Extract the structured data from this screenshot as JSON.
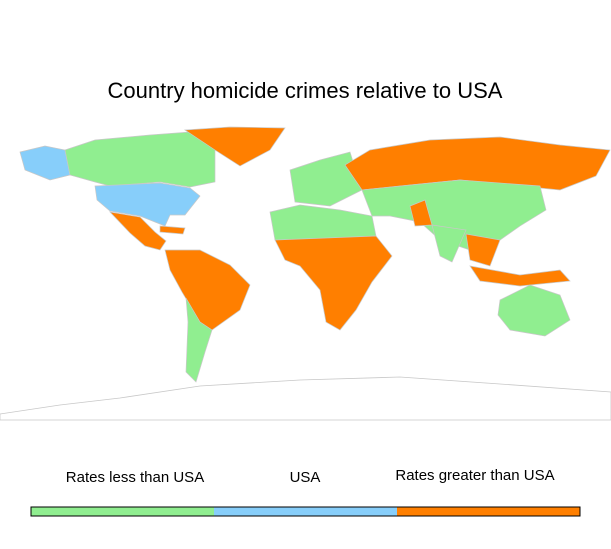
{
  "title": "Country homicide crimes relative to USA",
  "legend": [
    {
      "label": "Rates less than USA",
      "color": "#90ee90"
    },
    {
      "label": "USA",
      "color": "#87cefa"
    },
    {
      "label": "Rates greater than USA",
      "color": "#ff7f00"
    }
  ]
}
